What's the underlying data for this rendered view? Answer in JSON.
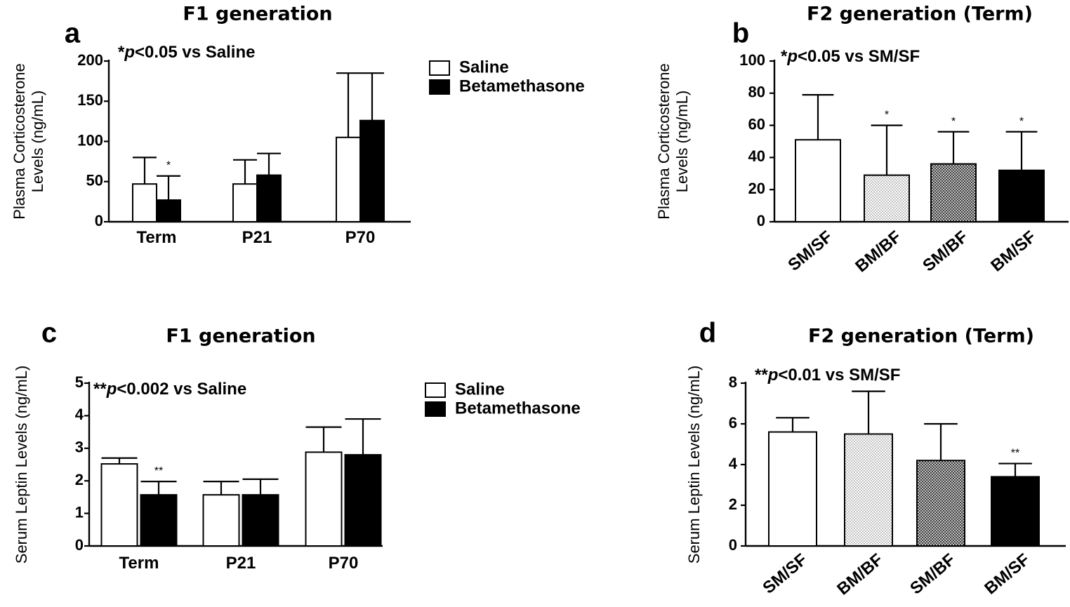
{
  "chart_data": [
    {
      "id": "a",
      "letter": "a",
      "type": "bar",
      "title": "F1 generation",
      "annotation": "*p<0.05 vs Saline",
      "annotation_parts": {
        "pre": "*",
        "p": "p",
        "post": "<0.05 vs Saline"
      },
      "ylabel": [
        "Plasma Corticosterone",
        "Levels (ng/mL)"
      ],
      "ylim": [
        0,
        200
      ],
      "yticks": [
        0,
        50,
        100,
        150,
        200
      ],
      "categories": [
        "Term",
        "P21",
        "P70"
      ],
      "series": [
        {
          "name": "Saline",
          "fill": "white",
          "values": [
            47,
            47,
            105
          ],
          "errors": [
            33,
            30,
            80
          ],
          "sig": [
            "",
            "",
            ""
          ]
        },
        {
          "name": "Betamethasone",
          "fill": "black",
          "values": [
            27,
            58,
            126
          ],
          "errors": [
            30,
            27,
            59
          ],
          "sig": [
            "*",
            "",
            ""
          ]
        }
      ],
      "legend": [
        "Saline",
        "Betamethasone"
      ]
    },
    {
      "id": "b",
      "letter": "b",
      "type": "bar",
      "title": "F2 generation (Term)",
      "annotation": "*p<0.05 vs SM/SF",
      "annotation_parts": {
        "pre": "*",
        "p": "p",
        "post": "<0.05 vs SM/SF"
      },
      "ylabel": [
        "Plasma Corticosterone",
        "Levels (ng/mL)"
      ],
      "ylim": [
        0,
        100
      ],
      "yticks": [
        0,
        20,
        40,
        60,
        80,
        100
      ],
      "categories": [
        "SM/SF",
        "BM/BF",
        "SM/BF",
        "BM/SF"
      ],
      "values": [
        51,
        29,
        36,
        32
      ],
      "errors": [
        28,
        31,
        20,
        24
      ],
      "fills": [
        "white",
        "dots",
        "cross",
        "black"
      ],
      "sig": [
        "",
        "*",
        "*",
        "*"
      ]
    },
    {
      "id": "c",
      "letter": "c",
      "type": "bar",
      "title": "F1 generation",
      "annotation": "**p<0.002 vs Saline",
      "annotation_parts": {
        "pre": "**",
        "p": "p",
        "post": "<0.002 vs Saline"
      },
      "ylabel": [
        "Serum Leptin Levels (ng/mL)"
      ],
      "ylim": [
        0,
        5
      ],
      "yticks": [
        0,
        1,
        2,
        3,
        4,
        5
      ],
      "categories": [
        "Term",
        "P21",
        "P70"
      ],
      "series": [
        {
          "name": "Saline",
          "fill": "white",
          "values": [
            2.52,
            1.57,
            2.88
          ],
          "errors": [
            0.18,
            0.41,
            0.77
          ],
          "sig": [
            "",
            "",
            ""
          ]
        },
        {
          "name": "Betamethasone",
          "fill": "black",
          "values": [
            1.57,
            1.57,
            2.8
          ],
          "errors": [
            0.41,
            0.48,
            1.1
          ],
          "sig": [
            "**",
            "",
            ""
          ]
        }
      ],
      "legend": [
        "Saline",
        "Betamethasone"
      ]
    },
    {
      "id": "d",
      "letter": "d",
      "type": "bar",
      "title": "F2 generation (Term)",
      "annotation": "**p<0.01 vs SM/SF",
      "annotation_parts": {
        "pre": "**",
        "p": "p",
        "post": "<0.01 vs SM/SF"
      },
      "ylabel": [
        "Serum Leptin Levels (ng/mL)"
      ],
      "ylim": [
        0,
        8
      ],
      "yticks": [
        0,
        2,
        4,
        6,
        8
      ],
      "categories": [
        "SM/SF",
        "BM/BF",
        "SM/BF",
        "BM/SF"
      ],
      "values": [
        5.6,
        5.5,
        4.2,
        3.4
      ],
      "errors": [
        0.7,
        2.1,
        1.8,
        0.65
      ],
      "fills": [
        "white",
        "dots",
        "cross",
        "black"
      ],
      "sig": [
        "",
        "",
        "",
        "**"
      ]
    }
  ]
}
